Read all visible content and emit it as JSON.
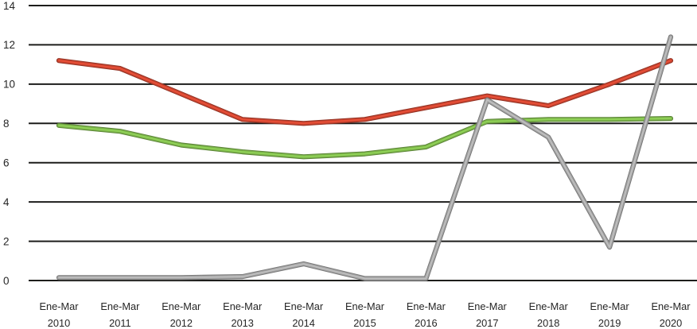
{
  "chart_data": {
    "type": "line",
    "title": "",
    "xlabel": "",
    "ylabel": "",
    "legend_position": "none",
    "grid": true,
    "gridline_color": "#1d1d1b",
    "text_color": "#262626",
    "background_color": "#ffffff",
    "ylim": [
      0,
      14
    ],
    "yticks": [
      0,
      2,
      4,
      6,
      8,
      10,
      12,
      14
    ],
    "ytick_labels": [
      "0",
      "2",
      "4",
      "6",
      "8",
      "10",
      "12",
      "14"
    ],
    "categories": [
      {
        "period": "Ene-Mar",
        "year": "2010"
      },
      {
        "period": "Ene-Mar",
        "year": "2011"
      },
      {
        "period": "Ene-Mar",
        "year": "2012"
      },
      {
        "period": "Ene-Mar",
        "year": "2013"
      },
      {
        "period": "Ene-Mar",
        "year": "2014"
      },
      {
        "period": "Ene-Mar",
        "year": "2015"
      },
      {
        "period": "Ene-Mar",
        "year": "2016"
      },
      {
        "period": "Ene-Mar",
        "year": "2017"
      },
      {
        "period": "Ene-Mar",
        "year": "2018"
      },
      {
        "period": "Ene-Mar",
        "year": "2019"
      },
      {
        "period": "Ene-Mar",
        "year": "2020"
      }
    ],
    "series": [
      {
        "name": "red-line",
        "color": "#c6432f",
        "values": [
          11.2,
          10.8,
          9.5,
          8.2,
          8.0,
          8.2,
          8.8,
          9.4,
          8.9,
          10.0,
          11.2
        ]
      },
      {
        "name": "green-line",
        "color": "#7bb34a",
        "values": [
          7.9,
          7.6,
          6.9,
          6.55,
          6.3,
          6.45,
          6.8,
          8.1,
          8.2,
          8.2,
          8.25
        ]
      },
      {
        "name": "gray-line",
        "color": "#a3a3a3",
        "values": [
          0.15,
          0.15,
          0.15,
          0.2,
          0.85,
          0.1,
          0.1,
          9.2,
          7.3,
          1.7,
          12.4
        ]
      }
    ]
  }
}
